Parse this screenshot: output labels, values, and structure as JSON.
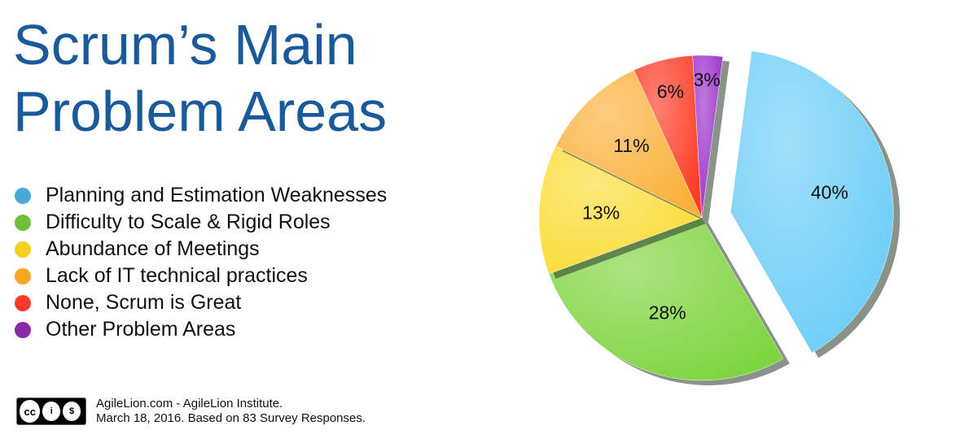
{
  "title": {
    "line1": "Scrum’s Main",
    "line2": "Problem Areas"
  },
  "legend": [
    {
      "label": "Planning and Estimation Weaknesses",
      "color": "#4aa8d8"
    },
    {
      "label": "Difficulty to Scale & Rigid Roles",
      "color": "#6cc03a"
    },
    {
      "label": "Abundance of Meetings",
      "color": "#f5d020"
    },
    {
      "label": "Lack of IT technical practices",
      "color": "#f5a623"
    },
    {
      "label": "None, Scrum is Great",
      "color": "#ff3a2a"
    },
    {
      "label": "Other Problem Areas",
      "color": "#8a2aa8"
    }
  ],
  "footer": {
    "license_icon": "cc-by-nc-icon",
    "line1": "AgileLion.com - AgileLion Institute.",
    "line2": "March 18, 2016. Based on 83 Survey Responses."
  },
  "chart_data": {
    "type": "pie",
    "title": "Scrum’s Main Problem Areas",
    "legend_position": "left",
    "slices": [
      {
        "name": "Planning and Estimation Weaknesses",
        "value": 40,
        "label": "40%",
        "color": "#6dcdf7",
        "exploded": true
      },
      {
        "name": "Difficulty to Scale & Rigid Roles",
        "value": 28,
        "label": "28%",
        "color": "#7ed43f"
      },
      {
        "name": "Abundance of Meetings",
        "value": 13,
        "label": "13%",
        "color": "#fbdc37"
      },
      {
        "name": "Lack of IT technical practices",
        "value": 11,
        "label": "11%",
        "color": "#fbb03b"
      },
      {
        "name": "None, Scrum is Great",
        "value": 6,
        "label": "6%",
        "color": "#ff3b25"
      },
      {
        "name": "Other Problem Areas",
        "value": 3,
        "label": "3%",
        "color": "#9b30c8"
      }
    ]
  }
}
